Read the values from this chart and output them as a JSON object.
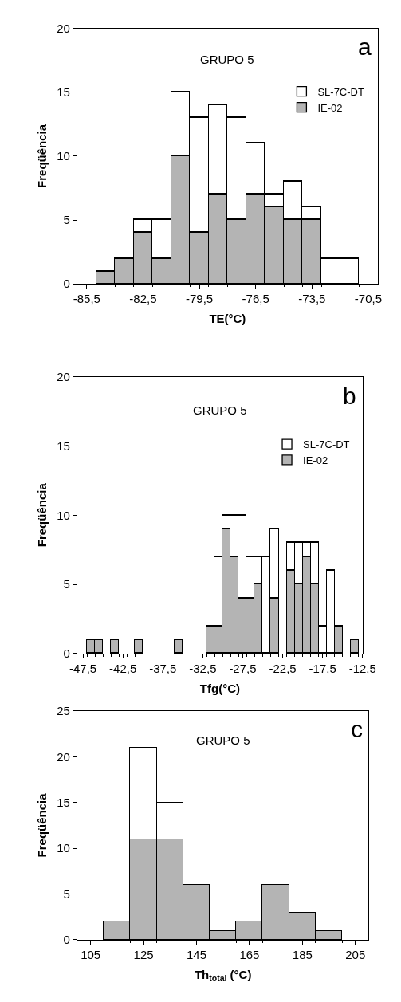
{
  "chart_data": [
    {
      "type": "bar",
      "title": "GRUPO 5",
      "annotations": [
        "a"
      ],
      "xlabel": "TE(°C)",
      "ylabel": "Freqüência",
      "stacked": true,
      "legend": "top right",
      "x": [
        -84.5,
        -83.5,
        -82.5,
        -81.5,
        -80.5,
        -79.5,
        -78.5,
        -77.5,
        -76.5,
        -75.5,
        -74.5,
        -73.5,
        -72.5,
        -71.5
      ],
      "series": [
        {
          "name": "IE-02",
          "color": "#b4b4b4",
          "values": [
            1,
            2,
            4,
            2,
            10,
            4,
            7,
            5,
            7,
            6,
            5,
            5,
            0,
            0
          ]
        },
        {
          "name": "SL-7C-DT",
          "color": "#ffffff",
          "values": [
            0,
            0,
            1,
            3,
            5,
            9,
            7,
            8,
            4,
            1,
            3,
            1,
            2,
            2
          ]
        }
      ],
      "xlim": [
        -86,
        -70
      ],
      "xticks": [
        {
          "value": -85.5,
          "label": "-85,5"
        },
        {
          "value": -82.5,
          "label": "-82,5"
        },
        {
          "value": -79.5,
          "label": "-79,5"
        },
        {
          "value": -76.5,
          "label": "-76,5"
        },
        {
          "value": -73.5,
          "label": "-73,5"
        },
        {
          "value": -70.5,
          "label": "-70,5"
        }
      ],
      "ylim": [
        0,
        20
      ],
      "yticks": [
        0,
        5,
        10,
        15,
        20
      ]
    },
    {
      "type": "bar",
      "title": "GRUPO 5",
      "annotations": [
        "b"
      ],
      "xlabel": "Tfg(°C)",
      "ylabel": "Freqüência",
      "stacked": true,
      "legend": "top right",
      "x": [
        -46.5,
        -45.5,
        -44.5,
        -43.5,
        -42.5,
        -41.5,
        -40.5,
        -39.5,
        -38.5,
        -37.5,
        -36.5,
        -35.5,
        -34.5,
        -33.5,
        -32.5,
        -31.5,
        -30.5,
        -29.5,
        -28.5,
        -27.5,
        -26.5,
        -25.5,
        -24.5,
        -23.5,
        -22.5,
        -21.5,
        -20.5,
        -19.5,
        -18.5,
        -17.5,
        -16.5,
        -15.5,
        -14.5,
        -13.5
      ],
      "series": [
        {
          "name": "IE-02",
          "color": "#b4b4b4",
          "values": [
            1,
            1,
            0,
            1,
            0,
            0,
            1,
            0,
            0,
            0,
            0,
            1,
            0,
            0,
            0,
            2,
            2,
            9,
            7,
            4,
            4,
            5,
            0,
            4,
            0,
            6,
            5,
            7,
            5,
            0,
            0,
            2,
            0,
            1
          ]
        },
        {
          "name": "SL-7C-DT",
          "color": "#ffffff",
          "values": [
            0,
            0,
            0,
            0,
            0,
            0,
            0,
            0,
            0,
            0,
            0,
            0,
            0,
            0,
            0,
            0,
            5,
            1,
            3,
            6,
            3,
            2,
            7,
            5,
            0,
            2,
            3,
            1,
            3,
            2,
            6,
            0,
            0,
            0
          ]
        }
      ],
      "xlim": [
        -48.2,
        -12.5
      ],
      "xticks": [
        {
          "value": -47.5,
          "label": "-47,5"
        },
        {
          "value": -42.5,
          "label": "-42,5"
        },
        {
          "value": -37.5,
          "label": "-37,5"
        },
        {
          "value": -32.5,
          "label": "-32,5"
        },
        {
          "value": -27.5,
          "label": "-27,5"
        },
        {
          "value": -22.5,
          "label": "-22,5"
        },
        {
          "value": -17.5,
          "label": "-17,5"
        },
        {
          "value": -12.5,
          "label": "-12,5"
        }
      ],
      "ylim": [
        0,
        20
      ],
      "yticks": [
        0,
        5,
        10,
        15,
        20
      ]
    },
    {
      "type": "bar",
      "title": "GRUPO 5",
      "annotations": [
        "c"
      ],
      "xlabel": "Th$_{total}$ (°C)",
      "ylabel": "Freqüência",
      "stacked": true,
      "x": [
        115,
        125,
        135,
        145,
        155,
        165,
        175,
        185,
        195
      ],
      "series": [
        {
          "color": "#b4b4b4",
          "values": [
            2,
            11,
            11,
            6,
            1,
            2,
            6,
            3,
            1
          ]
        },
        {
          "color": "#ffffff",
          "values": [
            0,
            10,
            4,
            0,
            0,
            0,
            0,
            0,
            0
          ]
        }
      ],
      "xlim": [
        100,
        210
      ],
      "xticks": [
        105,
        125,
        145,
        165,
        185,
        205
      ],
      "ylim": [
        0,
        25
      ],
      "yticks": [
        0,
        5,
        10,
        15,
        20,
        25
      ]
    }
  ]
}
